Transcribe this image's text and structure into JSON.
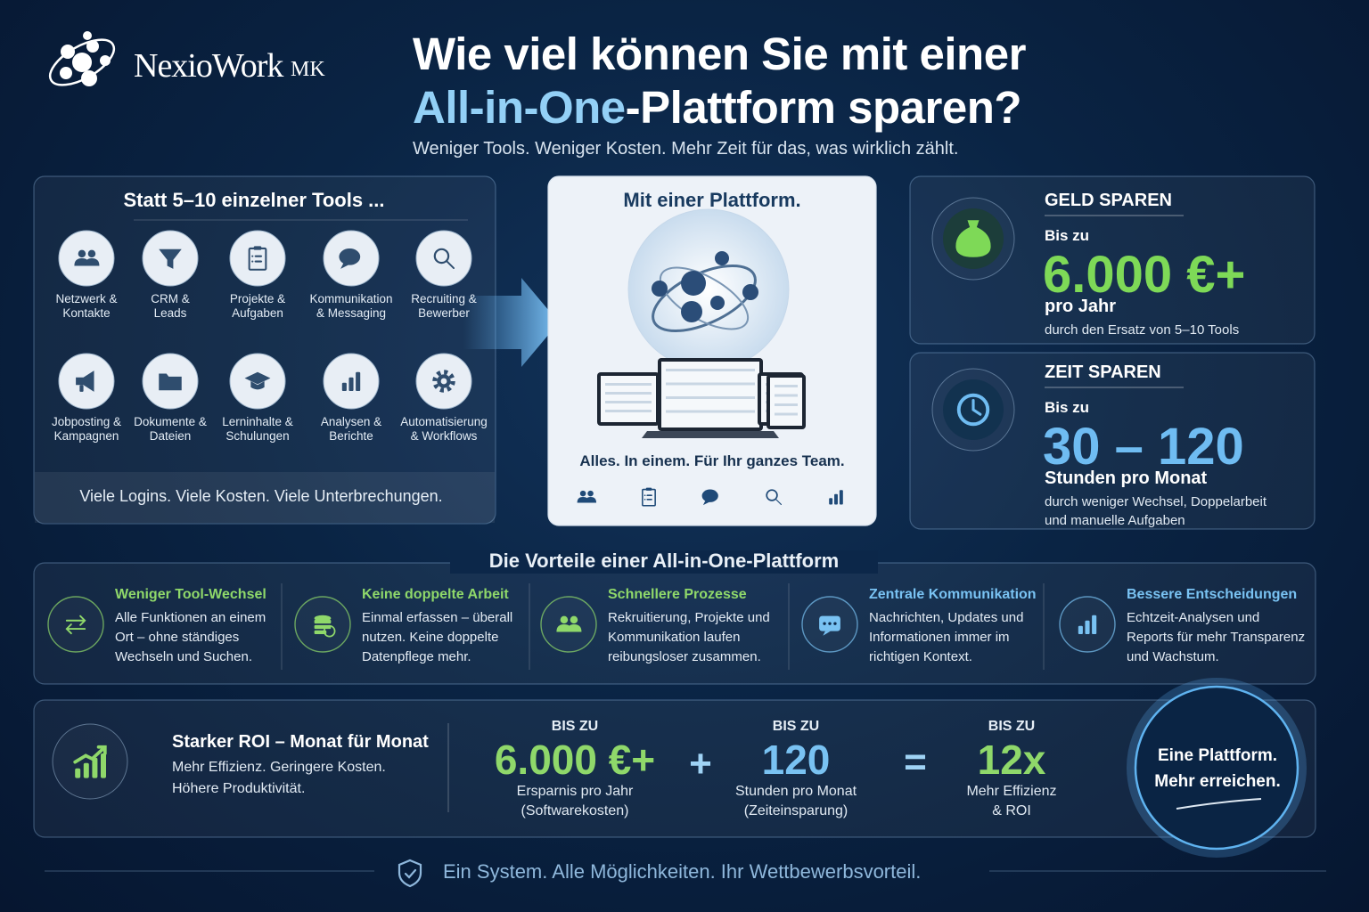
{
  "logo": {
    "name": "NexioWork",
    "suffix": "MK"
  },
  "header": {
    "title_line1": "Wie viel können Sie mit einer",
    "title_highlight": "All-in-One",
    "title_rest": "-Plattform sparen?",
    "subtitle": "Weniger Tools. Weniger Kosten. Mehr Zeit für das, was wirklich zählt."
  },
  "tools_panel": {
    "title": "Statt 5–10 einzelner Tools ...",
    "tools": [
      "Netzwerk &\nKontakte",
      "CRM &\nLeads",
      "Projekte &\nAufgaben",
      "Kommunikation\n& Messaging",
      "Recruiting &\nBewerber",
      "Jobposting &\nKampagnen",
      "Dokumente &\nDateien",
      "Lerninhalte &\nSchulungen",
      "Analysen &\nBerichte",
      "Automatisierung\n& Workflows"
    ],
    "footer": "Viele Logins. Viele Kosten. Viele Unterbrechungen."
  },
  "platform_panel": {
    "title": "Mit einer Plattform.",
    "caption": "Alles. In einem. Für Ihr ganzes Team."
  },
  "savings": [
    {
      "heading": "GELD SPAREN",
      "prefix": "Bis zu",
      "value": "6.000 €+",
      "unit": "pro Jahr",
      "note": "durch den Ersatz von 5–10 Tools"
    },
    {
      "heading": "ZEIT SPAREN",
      "prefix": "Bis zu",
      "value": "30 – 120",
      "unit": "Stunden pro Monat",
      "note": "durch weniger Wechsel, Doppelarbeit\nund manuelle Aufgaben"
    }
  ],
  "benefits": {
    "title": "Die Vorteile einer All-in-One-Plattform",
    "items": [
      {
        "title": "Weniger Tool-Wechsel",
        "text": "Alle Funktionen an einem\nOrt – ohne ständiges\nWechseln und Suchen."
      },
      {
        "title": "Keine doppelte Arbeit",
        "text": "Einmal erfassen – überall\nnutzen. Keine doppelte\nDatenpflege mehr."
      },
      {
        "title": "Schnellere Prozesse",
        "text": "Rekruitierung, Projekte und\nKommunikation laufen\nreibungsloser zusammen."
      },
      {
        "title": "Zentrale Kommunikation",
        "text": "Nachrichten, Updates und\nInformationen immer im\nrichtigen Kontext."
      },
      {
        "title": "Bessere Entscheidungen",
        "text": "Echtzeit-Analysen und\nReports für mehr Transparenz\nund Wachstum."
      }
    ]
  },
  "roi": {
    "title": "Starker ROI – Monat für Monat",
    "text": "Mehr Effizienz. Geringere Kosten.\nHöhere Produktivität.",
    "terms": [
      {
        "prefix": "BIS ZU",
        "value": "6.000 €+",
        "label": "Ersparnis pro Jahr\n(Softwarekosten)"
      },
      {
        "prefix": "BIS ZU",
        "value": "120",
        "label": "Stunden pro Monat\n(Zeiteinsparung)"
      },
      {
        "prefix": "BIS ZU",
        "value": "12x",
        "label": "Mehr Effizienz\n& ROI"
      }
    ],
    "operators": [
      "+",
      "="
    ],
    "badge": "Eine Plattform.\nMehr erreichen."
  },
  "footer": "Ein System. Alle Möglichkeiten. Ihr Wettbewerbsvorteil."
}
